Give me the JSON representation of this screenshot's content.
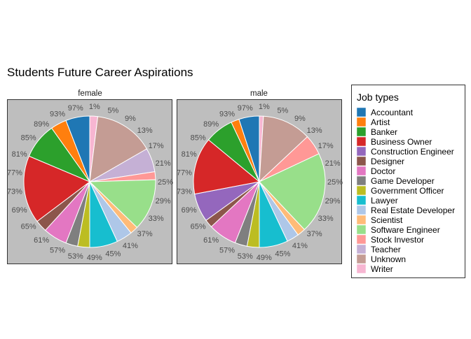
{
  "chart_data": {
    "type": "pie",
    "title": "Students Future Career Aspirations",
    "legend_title": "Job types",
    "legend_position": "right",
    "colors": {
      "Accountant": "#1f77b4",
      "Artist": "#ff7f0e",
      "Banker": "#2ca02c",
      "Business Owner": "#d62728",
      "Construction Engineer": "#9467bd",
      "Designer": "#8c564b",
      "Doctor": "#e377c2",
      "Game Developer": "#7f7f7f",
      "Government Officer": "#bcbd22",
      "Lawyer": "#17becf",
      "Real Estate Developer": "#aec7e8",
      "Scientist": "#ffbb78",
      "Software Engineer": "#98df8a",
      "Stock Investor": "#ff9896",
      "Teacher": "#c5b0d5",
      "Unknown": "#c49c94",
      "Writer": "#f7b6d2"
    },
    "panel_background": "#bebebe",
    "tick_labels": [
      "1%",
      "5%",
      "9%",
      "13%",
      "17%",
      "21%",
      "25%",
      "29%",
      "33%",
      "37%",
      "41%",
      "45%",
      "49%",
      "53%",
      "57%",
      "61%",
      "65%",
      "69%",
      "73%",
      "77%",
      "81%",
      "85%",
      "89%",
      "93%",
      "97%"
    ],
    "panels": [
      {
        "name": "female",
        "slices": [
          {
            "category": "Writer",
            "share": 0.02
          },
          {
            "category": "Unknown",
            "share": 0.15
          },
          {
            "category": "Teacher",
            "share": 0.06
          },
          {
            "category": "Stock Investor",
            "share": 0.02
          },
          {
            "category": "Software Engineer",
            "share": 0.13
          },
          {
            "category": "Scientist",
            "share": 0.02
          },
          {
            "category": "Real Estate Developer",
            "share": 0.04
          },
          {
            "category": "Lawyer",
            "share": 0.07
          },
          {
            "category": "Government Officer",
            "share": 0.03
          },
          {
            "category": "Game Developer",
            "share": 0.03
          },
          {
            "category": "Doctor",
            "share": 0.06
          },
          {
            "category": "Designer",
            "share": 0.03
          },
          {
            "category": "Business Owner",
            "share": 0.17
          },
          {
            "category": "Banker",
            "share": 0.09
          },
          {
            "category": "Artist",
            "share": 0.04
          },
          {
            "category": "Accountant",
            "share": 0.06
          }
        ]
      },
      {
        "name": "male",
        "slices": [
          {
            "category": "Writer",
            "share": 0.01
          },
          {
            "category": "Unknown",
            "share": 0.12
          },
          {
            "category": "Stock Investor",
            "share": 0.05
          },
          {
            "category": "Software Engineer",
            "share": 0.2
          },
          {
            "category": "Scientist",
            "share": 0.02
          },
          {
            "category": "Real Estate Developer",
            "share": 0.03
          },
          {
            "category": "Lawyer",
            "share": 0.07
          },
          {
            "category": "Government Officer",
            "share": 0.03
          },
          {
            "category": "Game Developer",
            "share": 0.03
          },
          {
            "category": "Doctor",
            "share": 0.07
          },
          {
            "category": "Designer",
            "share": 0.02
          },
          {
            "category": "Construction Engineer",
            "share": 0.07
          },
          {
            "category": "Business Owner",
            "share": 0.14
          },
          {
            "category": "Banker",
            "share": 0.07
          },
          {
            "category": "Artist",
            "share": 0.02
          },
          {
            "category": "Accountant",
            "share": 0.05
          }
        ]
      }
    ]
  }
}
